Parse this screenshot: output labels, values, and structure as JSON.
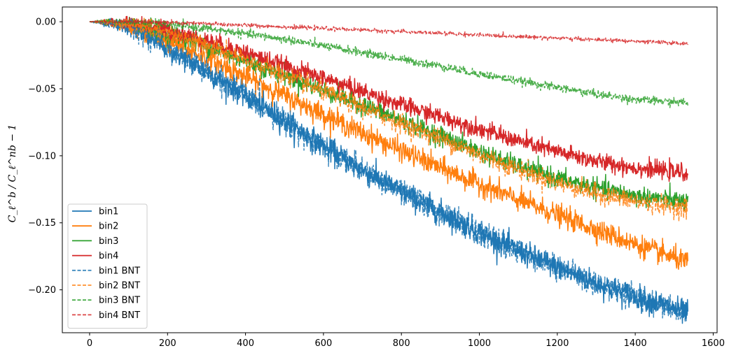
{
  "chart_data": {
    "type": "line",
    "title": "",
    "xlabel": "",
    "ylabel": "C_ℓ^b / C_ℓ^nb − 1",
    "xlim": [
      -70,
      1610
    ],
    "ylim": [
      -0.232,
      0.011
    ],
    "xticks": [
      0,
      200,
      400,
      600,
      800,
      1000,
      1200,
      1400,
      1600
    ],
    "xtick_labels": [
      "0",
      "200",
      "400",
      "600",
      "800",
      "1000",
      "1200",
      "1400",
      "1600"
    ],
    "yticks": [
      0.0,
      -0.05,
      -0.1,
      -0.15,
      -0.2
    ],
    "ytick_labels": [
      "0.00",
      "−0.05",
      "−0.10",
      "−0.15",
      "−0.20"
    ],
    "grid": false,
    "legend": "lower-left",
    "x_range": [
      0,
      1535
    ],
    "x": [
      0,
      50,
      100,
      150,
      200,
      300,
      400,
      500,
      600,
      700,
      800,
      900,
      1000,
      1100,
      1200,
      1300,
      1400,
      1500,
      1535
    ],
    "series": [
      {
        "name": "bin1",
        "color": "#1f77b4",
        "dash": "solid",
        "noise": 0.0045,
        "values": [
          0,
          -0.001,
          -0.004,
          -0.011,
          -0.02,
          -0.037,
          -0.055,
          -0.074,
          -0.093,
          -0.111,
          -0.127,
          -0.142,
          -0.157,
          -0.171,
          -0.183,
          -0.195,
          -0.205,
          -0.214,
          -0.218
        ]
      },
      {
        "name": "bin2",
        "color": "#ff7f0e",
        "dash": "solid",
        "noise": 0.004,
        "values": [
          0,
          -0.0007,
          -0.003,
          -0.008,
          -0.014,
          -0.027,
          -0.041,
          -0.055,
          -0.069,
          -0.083,
          -0.096,
          -0.109,
          -0.121,
          -0.133,
          -0.144,
          -0.155,
          -0.166,
          -0.176,
          -0.18
        ]
      },
      {
        "name": "bin3",
        "color": "#2ca02c",
        "dash": "solid",
        "noise": 0.0035,
        "values": [
          0,
          -0.0004,
          -0.0015,
          -0.004,
          -0.008,
          -0.018,
          -0.029,
          -0.04,
          -0.051,
          -0.062,
          -0.074,
          -0.085,
          -0.097,
          -0.108,
          -0.117,
          -0.124,
          -0.13,
          -0.133,
          -0.135
        ]
      },
      {
        "name": "bin4",
        "color": "#d62728",
        "dash": "solid",
        "noise": 0.0032,
        "values": [
          0,
          -0.0003,
          -0.001,
          -0.003,
          -0.006,
          -0.014,
          -0.023,
          -0.033,
          -0.042,
          -0.052,
          -0.062,
          -0.071,
          -0.08,
          -0.089,
          -0.097,
          -0.104,
          -0.109,
          -0.112,
          -0.113
        ]
      },
      {
        "name": "bin1 BNT",
        "color": "#1f77b4",
        "dash": "dashed",
        "noise": 0.0045,
        "values": [
          0,
          -0.001,
          -0.004,
          -0.011,
          -0.02,
          -0.037,
          -0.055,
          -0.074,
          -0.093,
          -0.111,
          -0.127,
          -0.142,
          -0.157,
          -0.171,
          -0.183,
          -0.195,
          -0.205,
          -0.214,
          -0.218
        ]
      },
      {
        "name": "bin2 BNT",
        "color": "#ff7f0e",
        "dash": "dashed",
        "noise": 0.0035,
        "values": [
          0,
          -0.0004,
          -0.0015,
          -0.004,
          -0.008,
          -0.018,
          -0.029,
          -0.04,
          -0.052,
          -0.064,
          -0.076,
          -0.087,
          -0.099,
          -0.11,
          -0.12,
          -0.128,
          -0.134,
          -0.138,
          -0.139
        ]
      },
      {
        "name": "bin3 BNT",
        "color": "#2ca02c",
        "dash": "dashed",
        "noise": 0.0015,
        "values": [
          0,
          -0.0001,
          -0.0004,
          -0.001,
          -0.002,
          -0.005,
          -0.009,
          -0.013,
          -0.018,
          -0.023,
          -0.028,
          -0.033,
          -0.039,
          -0.044,
          -0.049,
          -0.054,
          -0.058,
          -0.06,
          -0.06
        ]
      },
      {
        "name": "bin4 BNT",
        "color": "#d62728",
        "dash": "dashed",
        "noise": 0.0007,
        "values": [
          0,
          0,
          -0.0001,
          -0.0003,
          -0.0006,
          -0.0015,
          -0.0026,
          -0.0038,
          -0.005,
          -0.0062,
          -0.0074,
          -0.0086,
          -0.0098,
          -0.011,
          -0.0122,
          -0.0134,
          -0.0146,
          -0.0158,
          -0.0162
        ]
      }
    ]
  }
}
